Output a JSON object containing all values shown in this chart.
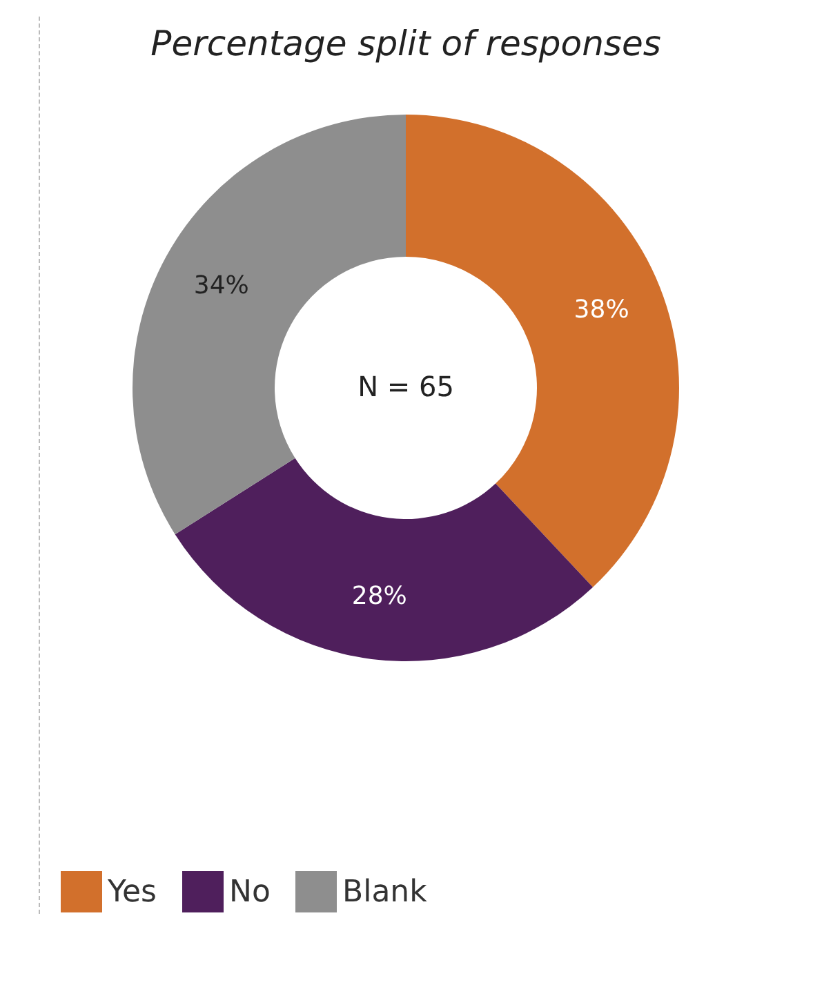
{
  "chart_data": {
    "type": "donut",
    "title": "Percentage split of responses",
    "categories": [
      "Yes",
      "No",
      "Blank"
    ],
    "values": [
      38,
      28,
      34
    ],
    "colors": [
      "#d2702c",
      "#4f1f5c",
      "#8e8e8e"
    ],
    "value_labels": [
      "38%",
      "28%",
      "34%"
    ],
    "annotations": [
      "N = 65"
    ],
    "legend": "bottom"
  }
}
